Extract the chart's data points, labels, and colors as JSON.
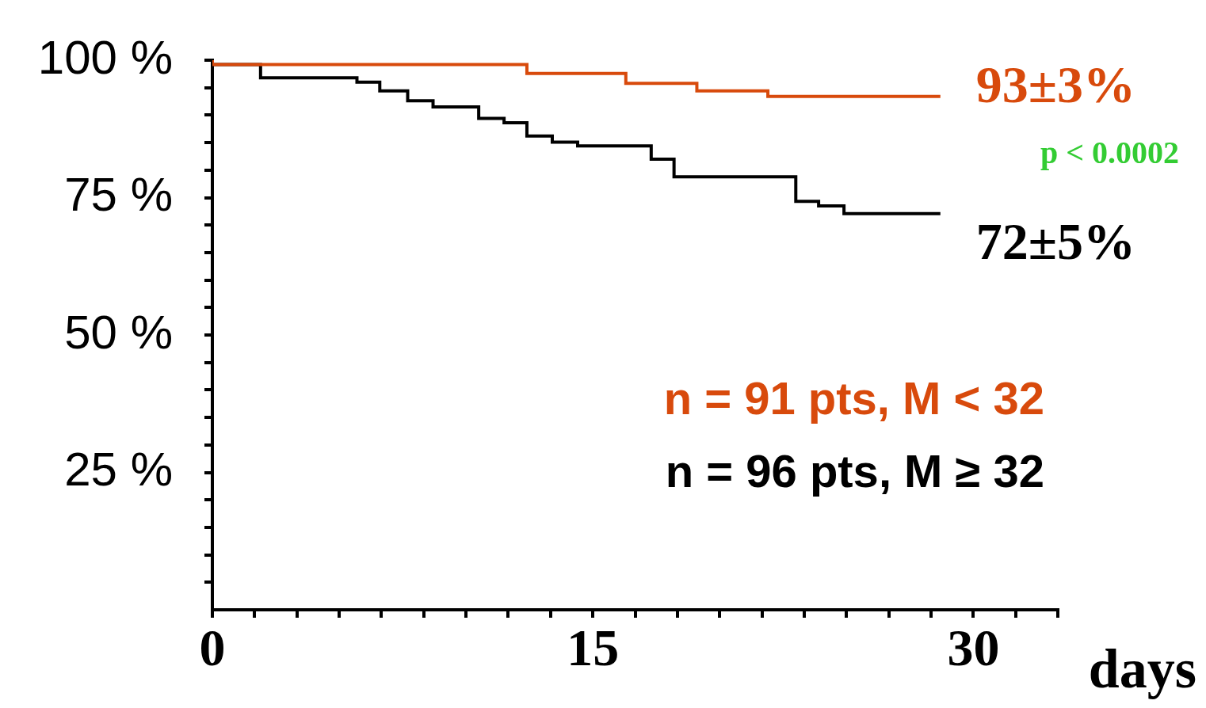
{
  "chart_data": {
    "type": "step",
    "xlabel": "days",
    "xlim": [
      0,
      33.33
    ],
    "xticks": [
      {
        "value": 0,
        "label": "0"
      },
      {
        "value": 1.667,
        "label": null
      },
      {
        "value": 3.333,
        "label": null
      },
      {
        "value": 5,
        "label": null
      },
      {
        "value": 6.667,
        "label": null
      },
      {
        "value": 8.333,
        "label": null
      },
      {
        "value": 10,
        "label": null
      },
      {
        "value": 11.667,
        "label": null
      },
      {
        "value": 13.333,
        "label": null
      },
      {
        "value": 15,
        "label": "15"
      },
      {
        "value": 16.667,
        "label": null
      },
      {
        "value": 18.333,
        "label": null
      },
      {
        "value": 20,
        "label": null
      },
      {
        "value": 21.667,
        "label": null
      },
      {
        "value": 23.333,
        "label": null
      },
      {
        "value": 25,
        "label": null
      },
      {
        "value": 26.667,
        "label": null
      },
      {
        "value": 28.333,
        "label": null
      },
      {
        "value": 30,
        "label": "30"
      },
      {
        "value": 31.667,
        "label": null
      },
      {
        "value": 33.33,
        "label": null
      }
    ],
    "ylim": [
      0,
      100
    ],
    "yticks": [
      {
        "value": 5,
        "label": null
      },
      {
        "value": 10,
        "label": null
      },
      {
        "value": 15,
        "label": null
      },
      {
        "value": 20,
        "label": null
      },
      {
        "value": 25,
        "label": "25 %"
      },
      {
        "value": 30,
        "label": null
      },
      {
        "value": 35,
        "label": null
      },
      {
        "value": 40,
        "label": null
      },
      {
        "value": 45,
        "label": null
      },
      {
        "value": 50,
        "label": "50 %"
      },
      {
        "value": 55,
        "label": null
      },
      {
        "value": 60,
        "label": null
      },
      {
        "value": 65,
        "label": null
      },
      {
        "value": 70,
        "label": null
      },
      {
        "value": 75,
        "label": "75 %"
      },
      {
        "value": 80,
        "label": null
      },
      {
        "value": 85,
        "label": null
      },
      {
        "value": 90,
        "label": null
      },
      {
        "value": 95,
        "label": null
      },
      {
        "value": 100,
        "label": "100 %"
      }
    ],
    "series": [
      {
        "name": "n = 91 pts, M < 32",
        "color": "#d84a0c",
        "x": [
          0,
          12.4,
          16.3,
          19.1,
          21.9,
          25.8,
          28.7
        ],
        "values": [
          100,
          99.2,
          97.6,
          95.8,
          94.4,
          93.4,
          93.4
        ]
      },
      {
        "name": "n = 96 pts, M ≥ 32",
        "color": "#000000",
        "x": [
          0,
          1.9,
          5.7,
          6.6,
          7.7,
          8.7,
          10.5,
          11.5,
          12.4,
          13.4,
          14.4,
          17.3,
          18.2,
          23.0,
          23.9,
          24.9,
          27.8,
          28.7
        ],
        "values": [
          100,
          99.2,
          96.8,
          96.0,
          94.4,
          92.6,
          91.5,
          89.4,
          88.6,
          86.2,
          85.1,
          84.4,
          82.0,
          78.8,
          74.3,
          73.5,
          72.1,
          72.1
        ]
      }
    ],
    "annotations": [
      {
        "text": "93±3%",
        "x": 28.7,
        "y": 93.4
      },
      "p < 0.0002",
      {
        "text": "72±5%",
        "x": 28.7,
        "y": 72.1
      }
    ]
  }
}
